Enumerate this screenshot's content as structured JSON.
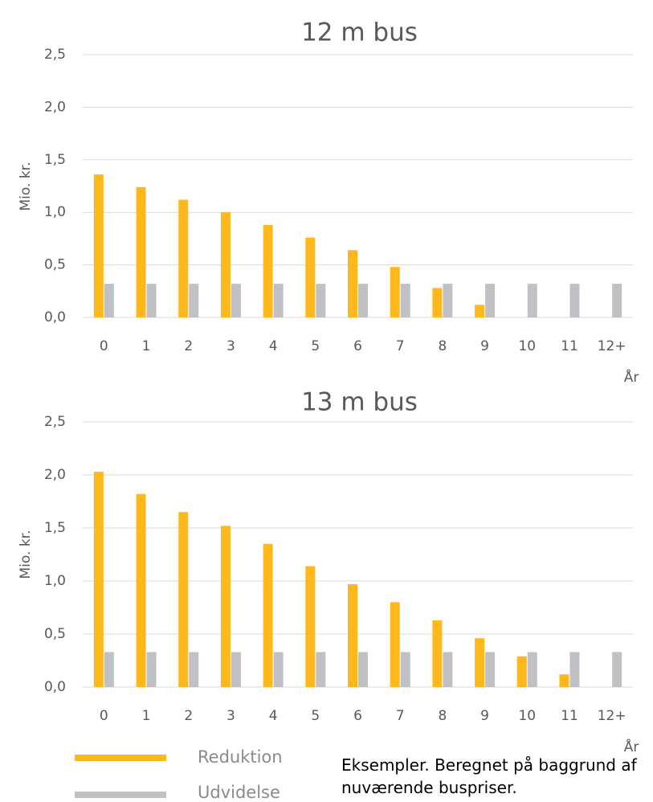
{
  "colors": {
    "reduktion": "#FFB81C",
    "udvidelse": "#BFC1C4",
    "grid": "#D9D9D9",
    "text": "#595959"
  },
  "legend": [
    {
      "label": "Reduktion",
      "color": "#FFB81C"
    },
    {
      "label": "Udvidelse",
      "color": "#BFC1C4"
    }
  ],
  "note": "Eksempler. Beregnet på baggrund af nuværende buspriser.",
  "chart_data": [
    {
      "type": "bar",
      "title": "12 m bus",
      "xlabel": "År",
      "ylabel": "Mio. kr.",
      "ylim": [
        0,
        2.5
      ],
      "yticks": [
        "0,0",
        "0,5",
        "1,0",
        "1,5",
        "2,0",
        "2,5"
      ],
      "grid": true,
      "categories": [
        "0",
        "1",
        "2",
        "3",
        "4",
        "5",
        "6",
        "7",
        "8",
        "9",
        "10",
        "11",
        "12+"
      ],
      "series": [
        {
          "name": "Reduktion",
          "values": [
            1.36,
            1.24,
            1.12,
            1.0,
            0.88,
            0.76,
            0.64,
            0.48,
            0.28,
            0.12,
            0,
            0,
            0
          ]
        },
        {
          "name": "Udvidelse",
          "values": [
            0.32,
            0.32,
            0.32,
            0.32,
            0.32,
            0.32,
            0.32,
            0.32,
            0.32,
            0.32,
            0.32,
            0.32,
            0.32
          ]
        }
      ]
    },
    {
      "type": "bar",
      "title": "13 m bus",
      "xlabel": "År",
      "ylabel": "Mio. kr.",
      "ylim": [
        0,
        2.5
      ],
      "yticks": [
        "0,0",
        "0,5",
        "1,0",
        "1,5",
        "2,0",
        "2,5"
      ],
      "grid": true,
      "categories": [
        "0",
        "1",
        "2",
        "3",
        "4",
        "5",
        "6",
        "7",
        "8",
        "9",
        "10",
        "11",
        "12+"
      ],
      "series": [
        {
          "name": "Reduktion",
          "values": [
            2.03,
            1.82,
            1.65,
            1.52,
            1.35,
            1.14,
            0.97,
            0.8,
            0.63,
            0.46,
            0.29,
            0.12,
            0
          ]
        },
        {
          "name": "Udvidelse",
          "values": [
            0.33,
            0.33,
            0.33,
            0.33,
            0.33,
            0.33,
            0.33,
            0.33,
            0.33,
            0.33,
            0.33,
            0.33,
            0.33
          ]
        }
      ]
    }
  ]
}
